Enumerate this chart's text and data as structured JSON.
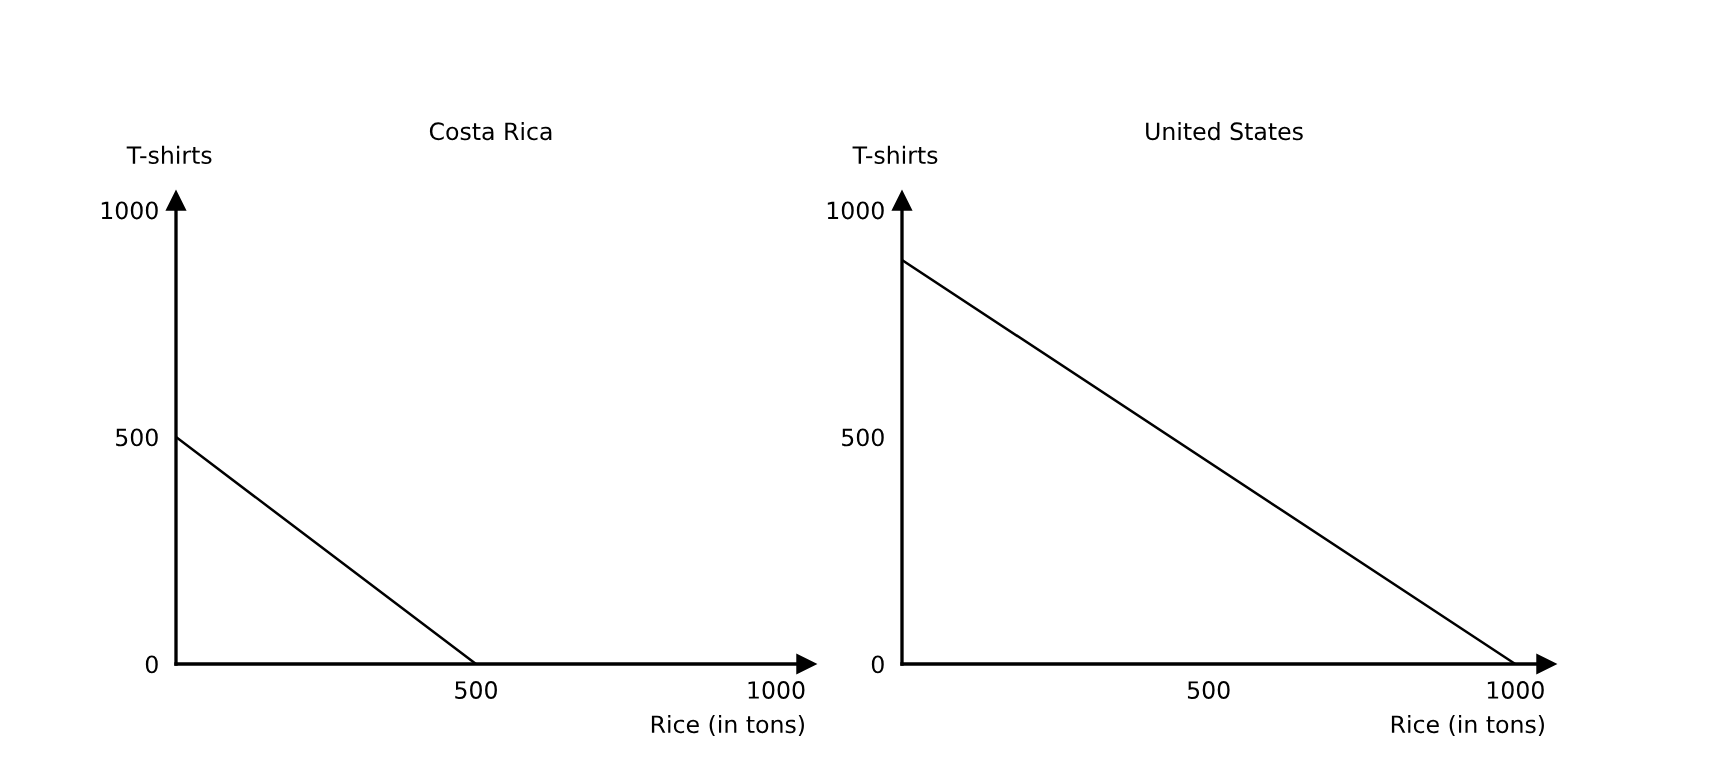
{
  "chart_data": [
    {
      "type": "line",
      "title": "Costa Rica",
      "xlabel": "Rice (in tons)",
      "ylabel": "T-shirts",
      "x": [
        0,
        500
      ],
      "series": [
        {
          "color": "#000000",
          "values": [
            500,
            0
          ]
        }
      ],
      "xlim": [
        0,
        1050
      ],
      "ylim": [
        0,
        1020
      ],
      "xticks": [
        500,
        1000
      ],
      "yticks": [
        0,
        500,
        1000
      ]
    },
    {
      "type": "line",
      "title": "United States",
      "xlabel": "Rice (in tons)",
      "ylabel": "T-shirts",
      "x": [
        0,
        1000
      ],
      "series": [
        {
          "color": "#000000",
          "values": [
            890,
            0
          ]
        }
      ],
      "xlim": [
        0,
        1050
      ],
      "ylim": [
        0,
        1020
      ],
      "xticks": [
        500,
        1000
      ],
      "yticks": [
        0,
        500,
        1000
      ]
    }
  ]
}
